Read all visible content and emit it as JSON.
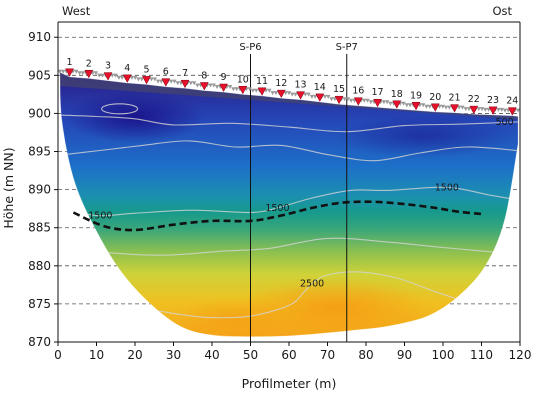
{
  "chart_data": {
    "type": "heatmap",
    "title": "",
    "xlabel": "Profilmeter (m)",
    "ylabel": "Höhe (m NN)",
    "xlim": [
      0,
      120
    ],
    "ylim": [
      870,
      912
    ],
    "xticks": [
      0,
      10,
      20,
      30,
      40,
      50,
      60,
      70,
      80,
      90,
      100,
      110,
      120
    ],
    "yticks": [
      870,
      875,
      880,
      885,
      890,
      895,
      900,
      905,
      910
    ],
    "grid": "horizontal dashed",
    "orientation": {
      "left": "West",
      "right": "Ost"
    },
    "electrodes": {
      "labels": [
        "1",
        "2",
        "3",
        "4",
        "5",
        "6",
        "7",
        "8",
        "9",
        "10",
        "11",
        "12",
        "13",
        "14",
        "15",
        "16",
        "17",
        "18",
        "19",
        "20",
        "21",
        "22",
        "23",
        "24"
      ],
      "x": [
        3,
        8,
        13,
        18,
        23,
        28,
        33,
        38,
        43,
        48,
        53,
        58,
        63,
        68,
        73,
        78,
        83,
        88,
        93,
        98,
        103,
        108,
        113,
        118
      ],
      "z": [
        905.6,
        905.4,
        905.1,
        904.8,
        904.6,
        904.3,
        904.1,
        903.8,
        903.6,
        903.3,
        903.1,
        902.8,
        902.6,
        902.3,
        902.0,
        901.8,
        901.6,
        901.4,
        901.2,
        901.0,
        900.9,
        900.7,
        900.6,
        900.5
      ]
    },
    "boreholes": [
      {
        "name": "S-P6",
        "x": 50
      },
      {
        "name": "S-P7",
        "x": 75
      }
    ],
    "contours": [
      {
        "label": "500",
        "x": 116,
        "z": 898.9
      },
      {
        "label": "1500",
        "x": 11,
        "z": 886.6
      },
      {
        "label": "1500",
        "x": 57,
        "z": 887.6
      },
      {
        "label": "1500",
        "x": 101,
        "z": 890.3
      },
      {
        "label": "2500",
        "x": 66,
        "z": 877.7
      }
    ],
    "boundary_line": {
      "style": "dashed",
      "x": [
        4,
        12,
        20,
        30,
        40,
        50,
        58,
        66,
        74,
        82,
        90,
        98,
        104,
        110
      ],
      "z": [
        887.0,
        885.2,
        884.7,
        885.4,
        885.9,
        885.9,
        886.6,
        887.6,
        888.3,
        888.4,
        888.1,
        887.6,
        887.1,
        886.8
      ]
    },
    "colors": {
      "low": "#23189a",
      "mid_low": "#1e73c8",
      "mid": "#17958a",
      "mid_high": "#b8c838",
      "high": "#f5a418"
    }
  }
}
